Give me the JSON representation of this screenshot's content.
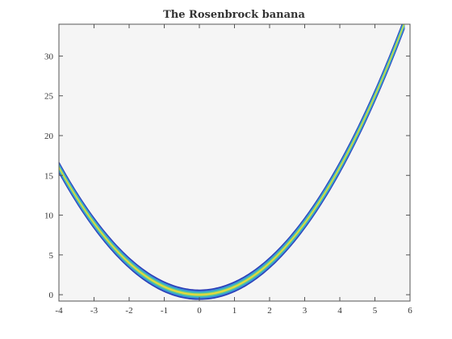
{
  "chart_data": {
    "type": "contour",
    "title": "The Rosenbrock banana",
    "xlabel": "",
    "ylabel": "",
    "xlim": [
      -4,
      6
    ],
    "ylim": [
      -0.8,
      34
    ],
    "xticks": [
      -4,
      -3,
      -2,
      -1,
      0,
      1,
      2,
      3,
      4,
      5,
      6
    ],
    "yticks": [
      0,
      5,
      10,
      15,
      20,
      25,
      30
    ],
    "grid": false,
    "background_color": "#f5f5f5",
    "ridge": {
      "equation": "y = x^2",
      "x_range": [
        -4,
        5.85
      ]
    },
    "bands": [
      {
        "level": "low",
        "color": "#2b3cb8",
        "half_width": 0.65
      },
      {
        "level": "mid-low",
        "color": "#3b8fd6",
        "half_width": 0.48
      },
      {
        "level": "mid",
        "color": "#3fc0b5",
        "half_width": 0.32
      },
      {
        "level": "mid-high",
        "color": "#a8d15a",
        "half_width": 0.18
      },
      {
        "level": "high",
        "color": "#f0dc3a",
        "half_width": 0.07
      }
    ]
  }
}
